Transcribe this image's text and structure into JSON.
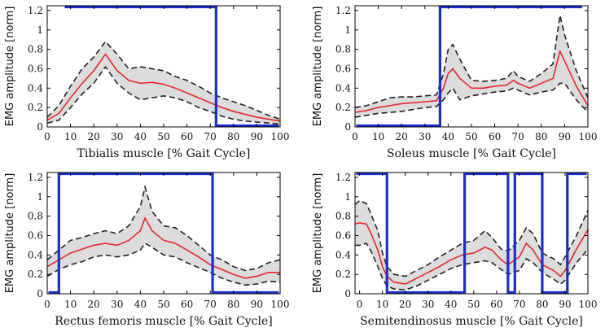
{
  "colors": {
    "mean_line": "#e8262a",
    "band_fill": "#dcdcdc",
    "sd_line": "#222222",
    "phase_box": "#1a2ec8",
    "axis": "#000000"
  },
  "chart_data": [
    {
      "type": "line",
      "title": "",
      "xlabel": "Tibialis muscle  [% Gait Cycle]",
      "ylabel": "EMG amplitude [norm]",
      "xlim": [
        0,
        100
      ],
      "ylim": [
        0,
        1.25
      ],
      "xticks": [
        "0",
        "10",
        "20",
        "30",
        "40",
        "50",
        "60",
        "70",
        "80",
        "90",
        "100"
      ],
      "yticks": [
        "0",
        "0.2",
        "0.4",
        "0.6",
        "0.8",
        "1",
        "1.2"
      ],
      "ytick_values": [
        0,
        0.2,
        0.4,
        0.6,
        0.8,
        1.0,
        1.2
      ],
      "x": [
        0,
        5,
        10,
        15,
        20,
        25,
        30,
        35,
        40,
        45,
        50,
        55,
        60,
        65,
        70,
        75,
        80,
        85,
        90,
        95,
        100
      ],
      "series": [
        {
          "name": "mean",
          "values": [
            0.07,
            0.14,
            0.3,
            0.45,
            0.58,
            0.75,
            0.58,
            0.48,
            0.45,
            0.46,
            0.44,
            0.4,
            0.35,
            0.3,
            0.25,
            0.2,
            0.16,
            0.13,
            0.1,
            0.08,
            0.06
          ]
        },
        {
          "name": "upper",
          "values": [
            0.1,
            0.22,
            0.42,
            0.6,
            0.72,
            0.88,
            0.75,
            0.6,
            0.62,
            0.6,
            0.58,
            0.52,
            0.48,
            0.42,
            0.35,
            0.3,
            0.26,
            0.22,
            0.17,
            0.12,
            0.08
          ]
        },
        {
          "name": "lower",
          "values": [
            0.04,
            0.07,
            0.2,
            0.34,
            0.45,
            0.62,
            0.45,
            0.35,
            0.28,
            0.3,
            0.32,
            0.3,
            0.26,
            0.2,
            0.16,
            0.11,
            0.08,
            0.06,
            0.05,
            0.04,
            0.03
          ]
        }
      ],
      "phase_segments": [
        {
          "level": "high",
          "from": 7.5,
          "to": 72.5
        },
        {
          "level": "low",
          "from": 72.5,
          "to": 100
        }
      ]
    },
    {
      "type": "line",
      "title": "",
      "xlabel": "Soleus muscle [% Gait Cycle]",
      "ylabel": "EMG amplitude [norm]",
      "xlim": [
        0,
        100
      ],
      "ylim": [
        0,
        1.25
      ],
      "xticks": [
        "0",
        "10",
        "20",
        "30",
        "40",
        "50",
        "60",
        "70",
        "80",
        "90",
        "100"
      ],
      "yticks": [
        "0",
        "0.2",
        "0.4",
        "0.6",
        "0.8",
        "1",
        "1.2"
      ],
      "ytick_values": [
        0,
        0.2,
        0.4,
        0.6,
        0.8,
        1.0,
        1.2
      ],
      "x": [
        0,
        5,
        10,
        15,
        20,
        25,
        30,
        35,
        38,
        40,
        42,
        45,
        50,
        55,
        60,
        65,
        68,
        70,
        75,
        80,
        85,
        88,
        90,
        95,
        100
      ],
      "series": [
        {
          "name": "mean",
          "values": [
            0.15,
            0.17,
            0.2,
            0.22,
            0.24,
            0.25,
            0.26,
            0.27,
            0.4,
            0.55,
            0.6,
            0.5,
            0.4,
            0.4,
            0.42,
            0.43,
            0.48,
            0.45,
            0.4,
            0.45,
            0.5,
            0.78,
            0.68,
            0.42,
            0.22
          ]
        },
        {
          "name": "upper",
          "values": [
            0.2,
            0.22,
            0.26,
            0.3,
            0.31,
            0.31,
            0.32,
            0.33,
            0.55,
            0.8,
            0.85,
            0.7,
            0.48,
            0.47,
            0.48,
            0.5,
            0.58,
            0.52,
            0.47,
            0.55,
            0.65,
            1.15,
            0.95,
            0.58,
            0.3
          ]
        },
        {
          "name": "lower",
          "values": [
            0.1,
            0.12,
            0.14,
            0.15,
            0.16,
            0.18,
            0.2,
            0.21,
            0.28,
            0.35,
            0.4,
            0.28,
            0.32,
            0.34,
            0.36,
            0.37,
            0.4,
            0.38,
            0.33,
            0.36,
            0.38,
            0.45,
            0.45,
            0.28,
            0.15
          ]
        }
      ],
      "phase_segments": [
        {
          "level": "low",
          "from": 0,
          "to": 36.5
        },
        {
          "level": "high",
          "from": 36.5,
          "to": 97.5
        }
      ]
    },
    {
      "type": "line",
      "title": "",
      "xlabel": "Rectus femoris muscle [% Gait Cycle]",
      "ylabel": "EMG amplitude [norm]",
      "xlim": [
        0,
        100
      ],
      "ylim": [
        0,
        1.25
      ],
      "xticks": [
        "0",
        "10",
        "20",
        "30",
        "40",
        "50",
        "60",
        "70",
        "80",
        "90",
        "100"
      ],
      "yticks": [
        "0",
        "0.2",
        "0.4",
        "0.6",
        "0.8",
        "1",
        "1.2"
      ],
      "ytick_values": [
        0,
        0.2,
        0.4,
        0.6,
        0.8,
        1.0,
        1.2
      ],
      "x": [
        0,
        5,
        10,
        15,
        20,
        25,
        30,
        35,
        40,
        42,
        45,
        50,
        55,
        60,
        65,
        70,
        75,
        80,
        85,
        90,
        95,
        100
      ],
      "series": [
        {
          "name": "mean",
          "values": [
            0.28,
            0.35,
            0.42,
            0.46,
            0.5,
            0.52,
            0.5,
            0.55,
            0.65,
            0.78,
            0.65,
            0.55,
            0.52,
            0.45,
            0.38,
            0.3,
            0.25,
            0.2,
            0.16,
            0.18,
            0.22,
            0.22
          ]
        },
        {
          "name": "upper",
          "values": [
            0.35,
            0.45,
            0.55,
            0.58,
            0.62,
            0.65,
            0.62,
            0.7,
            0.9,
            1.1,
            0.85,
            0.7,
            0.68,
            0.6,
            0.5,
            0.4,
            0.35,
            0.28,
            0.24,
            0.26,
            0.32,
            0.35
          ]
        },
        {
          "name": "lower",
          "values": [
            0.18,
            0.25,
            0.3,
            0.33,
            0.38,
            0.4,
            0.38,
            0.4,
            0.45,
            0.52,
            0.48,
            0.4,
            0.38,
            0.32,
            0.27,
            0.22,
            0.16,
            0.12,
            0.09,
            0.1,
            0.13,
            0.12
          ]
        }
      ],
      "phase_segments": [
        {
          "level": "low",
          "from": 0,
          "to": 5
        },
        {
          "level": "high",
          "from": 5,
          "to": 71
        },
        {
          "level": "low",
          "from": 71,
          "to": 100
        }
      ]
    },
    {
      "type": "line",
      "title": "",
      "xlabel": "Semitendinosus muscle  [% Gait Cycle]",
      "ylabel": "EMG amplitude [norm]",
      "xlim": [
        -2,
        100
      ],
      "ylim": [
        0,
        1.25
      ],
      "xticks": [
        "0",
        "10",
        "20",
        "30",
        "40",
        "50",
        "60",
        "70",
        "80",
        "90",
        "100"
      ],
      "yticks": [
        "0",
        "0.2",
        "0.4",
        "0.6",
        "0.8",
        "1",
        "1.2"
      ],
      "ytick_values": [
        0,
        0.2,
        0.4,
        0.6,
        0.8,
        1.0,
        1.2
      ],
      "x": [
        -2,
        0,
        3,
        5,
        8,
        10,
        12,
        15,
        20,
        25,
        30,
        35,
        40,
        45,
        50,
        55,
        58,
        62,
        65,
        70,
        73,
        76,
        80,
        85,
        88,
        90,
        95,
        100
      ],
      "series": [
        {
          "name": "mean",
          "values": [
            0.72,
            0.73,
            0.72,
            0.62,
            0.45,
            0.28,
            0.18,
            0.12,
            0.1,
            0.16,
            0.22,
            0.28,
            0.35,
            0.4,
            0.42,
            0.48,
            0.45,
            0.35,
            0.3,
            0.38,
            0.52,
            0.45,
            0.3,
            0.24,
            0.18,
            0.24,
            0.46,
            0.66
          ]
        },
        {
          "name": "upper",
          "values": [
            0.92,
            0.96,
            0.93,
            0.82,
            0.65,
            0.42,
            0.28,
            0.2,
            0.18,
            0.24,
            0.3,
            0.38,
            0.45,
            0.52,
            0.55,
            0.65,
            0.58,
            0.46,
            0.44,
            0.55,
            0.68,
            0.62,
            0.42,
            0.36,
            0.3,
            0.38,
            0.6,
            0.86
          ]
        },
        {
          "name": "lower",
          "values": [
            0.5,
            0.5,
            0.52,
            0.44,
            0.28,
            0.16,
            0.08,
            0.05,
            0.04,
            0.08,
            0.14,
            0.2,
            0.26,
            0.3,
            0.32,
            0.34,
            0.32,
            0.25,
            0.2,
            0.24,
            0.36,
            0.32,
            0.22,
            0.15,
            0.1,
            0.14,
            0.32,
            0.46
          ]
        }
      ],
      "phase_segments": [
        {
          "level": "high",
          "from": -2,
          "to": 12
        },
        {
          "level": "low",
          "from": 12,
          "to": 46
        },
        {
          "level": "high",
          "from": 46,
          "to": 65
        },
        {
          "level": "low",
          "from": 65,
          "to": 68
        },
        {
          "level": "high",
          "from": 68,
          "to": 80
        },
        {
          "level": "low",
          "from": 80,
          "to": 91
        },
        {
          "level": "high",
          "from": 91,
          "to": 100
        }
      ]
    }
  ]
}
